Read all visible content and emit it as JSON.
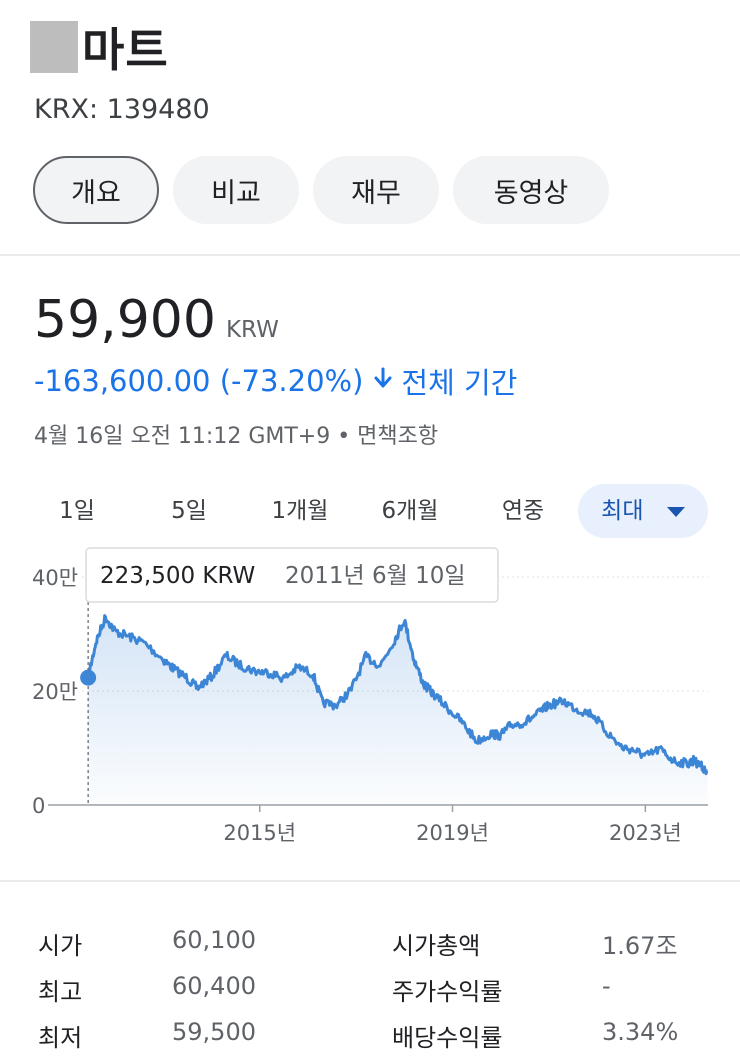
{
  "header": {
    "title": "마트",
    "ticker": "KRX: 139480"
  },
  "tabs": [
    {
      "label": "개요",
      "active": true
    },
    {
      "label": "비교",
      "active": false
    },
    {
      "label": "재무",
      "active": false
    },
    {
      "label": "동영상",
      "active": false
    }
  ],
  "quote": {
    "price": "59,900",
    "currency": "KRW",
    "change": "-163,600.00 (-73.20%)",
    "period": "전체 기간",
    "timestamp": "4월 16일 오전 11:12 GMT+9 • 면책조항"
  },
  "ranges": [
    {
      "label": "1일",
      "active": false
    },
    {
      "label": "5일",
      "active": false
    },
    {
      "label": "1개월",
      "active": false
    },
    {
      "label": "6개월",
      "active": false
    },
    {
      "label": "연중",
      "active": false
    },
    {
      "label": "최대",
      "active": true
    }
  ],
  "tooltip": {
    "price": "223,500 KRW",
    "date": "2011년 6월 10일"
  },
  "colors": {
    "accent": "#1a73e8",
    "line": "#3d86d6",
    "active_pill": "#e8f0fe"
  },
  "chart_data": {
    "type": "line",
    "ylabel_ticks": [
      "0",
      "20만",
      "40만"
    ],
    "y_tick_values": [
      0,
      200000,
      400000
    ],
    "ylim": [
      0,
      400000
    ],
    "x_ticks": [
      "2015년",
      "2019년",
      "2023년"
    ],
    "x_tick_values": [
      2015,
      2019,
      2023
    ],
    "xlim": [
      2010.4,
      2024.3
    ],
    "series": [
      {
        "x": [
          2011.44,
          2011.6,
          2011.8,
          2012.0,
          2012.3,
          2012.6,
          2013.0,
          2013.2,
          2013.5,
          2013.7,
          2014.0,
          2014.3,
          2014.6,
          2014.9,
          2015.2,
          2015.5,
          2015.8,
          2016.1,
          2016.3,
          2016.6,
          2016.9,
          2017.2,
          2017.5,
          2017.8,
          2018.0,
          2018.2,
          2018.4,
          2018.6,
          2018.9,
          2019.2,
          2019.5,
          2019.8,
          2020.0,
          2020.2,
          2020.5,
          2020.8,
          2021.0,
          2021.3,
          2021.6,
          2021.9,
          2022.2,
          2022.5,
          2022.8,
          2023.0,
          2023.3,
          2023.6,
          2023.9,
          2024.0,
          2024.1,
          2024.29
        ],
        "y": [
          223500,
          285000,
          330000,
          305000,
          295000,
          285000,
          255000,
          240000,
          222000,
          205000,
          225000,
          262000,
          245000,
          235000,
          232000,
          222000,
          242000,
          230000,
          180000,
          175000,
          203000,
          260000,
          245000,
          290000,
          325000,
          255000,
          212000,
          195000,
          170000,
          145000,
          112000,
          125000,
          122000,
          140000,
          145000,
          162000,
          175000,
          182000,
          167000,
          160000,
          128000,
          102000,
          95000,
          85000,
          98000,
          77000,
          73000,
          78000,
          72000,
          59900
        ]
      }
    ]
  },
  "stats": [
    {
      "label": "시가",
      "value": "60,100"
    },
    {
      "label": "시가총액",
      "value": "1.67조"
    },
    {
      "label": "최고",
      "value": "60,400"
    },
    {
      "label": "주가수익률",
      "value": "-"
    },
    {
      "label": "최저",
      "value": "59,500"
    },
    {
      "label": "배당수익률",
      "value": "3.34%"
    }
  ]
}
